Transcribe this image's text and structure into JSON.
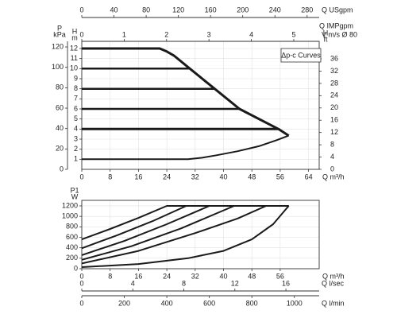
{
  "chart_data": [
    {
      "type": "line",
      "grid": true,
      "color": "#1a1a1a",
      "annotation": "Δp-c Curves",
      "xlabel": "Q m³/h",
      "xlim": [
        0,
        67
      ],
      "xticks": [
        0,
        8,
        16,
        24,
        32,
        40,
        48,
        56,
        64
      ],
      "ylabel": "H",
      "yunit": "m",
      "ylim": [
        0,
        12.71
      ],
      "yticks": [
        1,
        2,
        3,
        4,
        5,
        6,
        7,
        8,
        9,
        10,
        11,
        12
      ],
      "y2label": "H",
      "y2unit": "ft",
      "y2lim": [
        0,
        41.7
      ],
      "y2ticks": [
        0,
        4,
        8,
        12,
        16,
        20,
        24,
        28,
        32,
        36
      ],
      "axis_note": "Q IMPgpm",
      "extra_axes": [
        {
          "position": "left",
          "label": "P",
          "unit": "kPa",
          "lim": [
            0,
            125.5
          ],
          "ticks": [
            0,
            20,
            40,
            60,
            80,
            100,
            120
          ]
        },
        {
          "position": "top",
          "label": "Q USgpm",
          "lim": [
            0,
            295
          ],
          "ticks": [
            0,
            40,
            80,
            120,
            160,
            200,
            240,
            280
          ]
        },
        {
          "position": "top2",
          "label": "V m/s Ø 80",
          "lim": [
            0,
            5.6
          ],
          "ticks": [
            0,
            1,
            2,
            3,
            4,
            5
          ]
        }
      ],
      "series": [
        {
          "width": 3,
          "x": [
            0,
            22,
            24,
            26,
            30.5,
            37.5,
            44.5,
            55.5,
            58.4
          ],
          "values": [
            12,
            12,
            11.7,
            11.3,
            10,
            8,
            6,
            4,
            3.35
          ]
        },
        {
          "width": 2.5,
          "x": [
            0,
            30.5
          ],
          "values": [
            10,
            10
          ]
        },
        {
          "width": 2.5,
          "x": [
            0,
            37.5
          ],
          "values": [
            8,
            8
          ]
        },
        {
          "width": 2.5,
          "x": [
            0,
            44.5
          ],
          "values": [
            6,
            6
          ]
        },
        {
          "width": 3,
          "x": [
            0,
            55.5
          ],
          "values": [
            4,
            4
          ]
        },
        {
          "width": 2,
          "x": [
            0,
            30,
            34,
            38,
            44,
            50,
            55,
            58.4
          ],
          "values": [
            1,
            1,
            1.15,
            1.4,
            1.8,
            2.3,
            2.9,
            3.35
          ]
        }
      ]
    },
    {
      "type": "line",
      "grid": true,
      "color": "#1a1a1a",
      "xlabel": "Q m³/h",
      "xlim": [
        0,
        67
      ],
      "xticks": [
        0,
        8,
        16,
        24,
        32,
        40,
        48,
        56
      ],
      "ylabel": "P1",
      "yunit": "W",
      "ylim": [
        0,
        1306
      ],
      "yticks": [
        0,
        200,
        400,
        600,
        800,
        1000,
        1200
      ],
      "extra_axes": [
        {
          "position": "bottom2",
          "label": "Q l/sec",
          "lim": [
            0,
            18.61
          ],
          "ticks": [
            0,
            4,
            8,
            12,
            16
          ]
        },
        {
          "position": "bottom3",
          "label": "Q l/min",
          "lim": [
            0,
            1116.7
          ],
          "ticks": [
            0,
            200,
            400,
            600,
            800,
            1000
          ]
        }
      ],
      "series": [
        {
          "width": 2,
          "x": [
            0,
            8,
            16,
            24,
            58.4
          ],
          "values": [
            560,
            760,
            970,
            1200,
            1200
          ]
        },
        {
          "width": 2,
          "x": [
            0,
            10,
            20,
            29.5,
            58.4
          ],
          "values": [
            390,
            640,
            910,
            1200,
            1200
          ]
        },
        {
          "width": 2,
          "x": [
            0,
            12,
            24,
            36,
            58.4
          ],
          "values": [
            260,
            530,
            850,
            1200,
            1200
          ]
        },
        {
          "width": 2,
          "x": [
            0,
            14,
            28,
            43,
            58.4
          ],
          "values": [
            170,
            430,
            770,
            1200,
            1200
          ]
        },
        {
          "width": 2,
          "x": [
            0,
            16,
            32,
            44,
            52,
            58.4
          ],
          "values": [
            100,
            340,
            680,
            960,
            1200,
            1200
          ]
        },
        {
          "width": 2,
          "x": [
            0,
            16,
            30,
            40,
            48,
            54,
            58.4
          ],
          "values": [
            30,
            90,
            200,
            340,
            560,
            850,
            1200
          ]
        }
      ]
    }
  ]
}
